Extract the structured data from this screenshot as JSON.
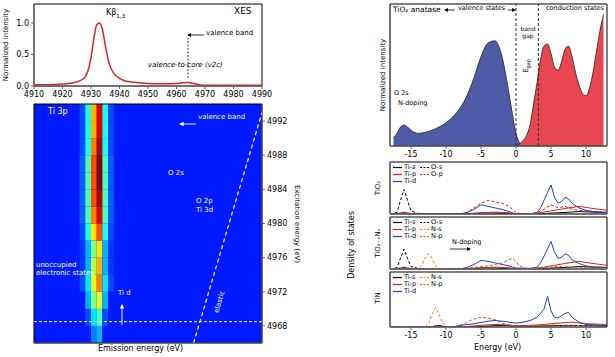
{
  "chart_data": [
    {
      "type": "line",
      "title": "XES",
      "ylabel": "Normalized intensity",
      "color": "#d62728",
      "xlim": [
        4910,
        4990
      ],
      "xticks": [
        4910,
        4920,
        4930,
        4940,
        4950,
        4960,
        4970,
        4980,
        4990
      ],
      "ylim": [
        0,
        1.3
      ],
      "yticks": [
        {
          "value": 0,
          "label": "0.0"
        },
        0.5,
        {
          "value": 1,
          "label": "1.0"
        }
      ],
      "x": [
        4910,
        4915,
        4920,
        4924,
        4926,
        4928,
        4929,
        4930,
        4931,
        4932,
        4933,
        4934,
        4935,
        4936,
        4937,
        4938,
        4940,
        4942,
        4945,
        4950,
        4955,
        4960,
        4962,
        4964,
        4966,
        4968,
        4970,
        4975,
        4980,
        4990
      ],
      "values": [
        0.02,
        0.02,
        0.03,
        0.05,
        0.08,
        0.15,
        0.25,
        0.45,
        0.75,
        0.97,
        1.0,
        0.9,
        0.65,
        0.42,
        0.28,
        0.2,
        0.12,
        0.08,
        0.06,
        0.04,
        0.035,
        0.04,
        0.05,
        0.055,
        0.04,
        0.02,
        0.01,
        0.01,
        0.01,
        0.01
      ],
      "annotations": [
        "Kβ1,3",
        "valence band",
        "valence-to-core (v2c)"
      ]
    },
    {
      "type": "heatmap",
      "xlabel": "Emission energy (eV)",
      "ylabel": "Excitation energy (eV)",
      "xlim": [
        4910,
        4990
      ],
      "ylim": [
        4966,
        4994
      ],
      "yticks": [
        4968,
        4972,
        4976,
        4980,
        4984,
        4988,
        4992
      ],
      "tick_labels": "y",
      "zlim": [
        0,
        1
      ],
      "background": 0.15,
      "cell_size": [
        2,
        2
      ],
      "cells": {
        "x": [
          4926,
          4928,
          4930,
          4932,
          4934,
          4936
        ],
        "y": [
          4966,
          4968,
          4970,
          4972,
          4974,
          4976,
          4978,
          4980,
          4982,
          4984,
          4986,
          4988,
          4990,
          4992
        ],
        "z": [
          [
            0.15,
            0.15,
            0.15,
            0.2,
            0.18,
            0.18,
            0.2,
            0.22,
            0.22,
            0.22,
            0.22,
            0.2,
            0.2,
            0.2
          ],
          [
            0.15,
            0.2,
            0.3,
            0.35,
            0.3,
            0.3,
            0.4,
            0.45,
            0.45,
            0.45,
            0.45,
            0.4,
            0.4,
            0.4
          ],
          [
            0.25,
            0.35,
            0.5,
            0.6,
            0.55,
            0.5,
            0.65,
            0.75,
            0.8,
            0.8,
            0.8,
            0.75,
            0.7,
            0.7
          ],
          [
            0.3,
            0.45,
            0.6,
            0.75,
            0.7,
            0.65,
            0.8,
            0.9,
            0.95,
            1.0,
            1.0,
            0.95,
            0.9,
            0.9
          ],
          [
            0.15,
            0.2,
            0.3,
            0.35,
            0.3,
            0.3,
            0.4,
            0.45,
            0.45,
            0.45,
            0.45,
            0.4,
            0.4,
            0.4
          ],
          [
            0.15,
            0.15,
            0.15,
            0.2,
            0.18,
            0.18,
            0.2,
            0.22,
            0.22,
            0.22,
            0.22,
            0.2,
            0.2,
            0.2
          ]
        ]
      },
      "elastic": [
        [
          4966,
          4966
        ],
        [
          4990,
          4993
        ]
      ],
      "threshold": 4968.5,
      "annotations": [
        "Ti 3p",
        "valence band",
        "O 2s",
        "O 2p",
        "Ti 3d",
        "unoccupied electronic states",
        "Ti d",
        "elastic"
      ]
    },
    {
      "type": "area",
      "title": "TiO₂ anatase",
      "ylabel": "Normalized intensity",
      "xlim": [
        -18,
        13
      ],
      "xticks": [
        -15,
        -10,
        -5,
        0,
        5,
        10
      ],
      "ylim": [
        0,
        1.35
      ],
      "tick_labels": "x",
      "x": [
        -17.5,
        -17,
        -16.5,
        -16,
        -15.5,
        -15,
        -14.5,
        -14,
        -13,
        -12,
        -11,
        -10,
        -9,
        -8,
        -7,
        -6,
        -5,
        -4,
        -3,
        -2,
        -1,
        -0.5,
        0,
        0.5,
        1,
        1.5,
        2,
        2.5,
        3,
        3.5,
        4,
        4.5,
        5,
        5.5,
        6,
        6.5,
        7,
        7.5,
        8,
        8.5,
        9,
        9.5,
        10,
        10.5,
        11,
        11.5,
        12,
        12.5
      ],
      "series": [
        {
          "name": "valence states",
          "color": "#4e5ca8",
          "values": [
            0.08,
            0.12,
            0.18,
            0.2,
            0.18,
            0.15,
            0.13,
            0.12,
            0.13,
            0.15,
            0.18,
            0.22,
            0.28,
            0.36,
            0.48,
            0.65,
            0.85,
            0.98,
            1.0,
            0.85,
            0.5,
            0.3,
            0.12,
            0.03,
            0,
            null,
            null,
            null,
            null,
            null,
            null,
            null,
            null,
            null,
            null,
            null,
            null,
            null,
            null,
            null,
            null,
            null,
            null,
            null,
            null,
            null,
            null,
            null
          ]
        },
        {
          "name": "conduction states",
          "color": "#e8464f",
          "values": [
            null,
            null,
            null,
            null,
            null,
            null,
            null,
            null,
            null,
            null,
            null,
            null,
            null,
            null,
            null,
            null,
            null,
            null,
            null,
            null,
            null,
            null,
            0,
            0.02,
            0.05,
            0.1,
            0.2,
            0.4,
            0.6,
            0.82,
            0.95,
            0.97,
            0.88,
            0.75,
            0.72,
            0.8,
            0.92,
            0.95,
            0.85,
            0.7,
            0.58,
            0.5,
            0.48,
            0.55,
            0.7,
            0.9,
            1.1,
            1.25
          ]
        }
      ],
      "band_edges": [
        0,
        3.2
      ],
      "annotations": [
        "band gap",
        "Egap",
        "O 2s",
        "N-doping"
      ]
    },
    {
      "type": "line",
      "title": "TiO₂",
      "xlim": [
        -18,
        13
      ],
      "ylim": [
        0,
        1.7
      ],
      "tick_labels": false,
      "legend": "upper left",
      "series": [
        {
          "name": "Ti-s",
          "color": "#000000",
          "line_style": "solid",
          "x": [
            -18,
            -16.5,
            -16,
            -15.5,
            -14,
            -6,
            -4,
            -2,
            0,
            3,
            5,
            7,
            9,
            11,
            13
          ],
          "values": [
            0,
            0.02,
            0.06,
            0.02,
            0,
            0.02,
            0.04,
            0.02,
            0,
            0,
            0.03,
            0.05,
            0.08,
            0.06,
            0.05
          ]
        },
        {
          "name": "O-s",
          "color": "#000000",
          "line_style": "dashed",
          "x": [
            -18,
            -17,
            -16.5,
            -16,
            -15.5,
            -15,
            -14,
            -13
          ],
          "values": [
            0,
            0.05,
            0.45,
            0.8,
            0.45,
            0.1,
            0.02,
            0
          ]
        },
        {
          "name": "Ti-p",
          "color": "#e0201b",
          "line_style": "solid",
          "x": [
            -18,
            -16,
            -14,
            -7,
            -5,
            -3,
            -1,
            0,
            2,
            3,
            5,
            7,
            9,
            11,
            13
          ],
          "values": [
            0,
            0.04,
            0,
            0,
            0.04,
            0.06,
            0.04,
            0,
            0,
            0.03,
            0.1,
            0.18,
            0.25,
            0.18,
            0.12
          ]
        },
        {
          "name": "O-p",
          "color": "#e0201b",
          "line_style": "dashed",
          "x": [
            -18,
            -8,
            -7,
            -6,
            -5,
            -4,
            -3,
            -2,
            -1,
            0,
            1,
            2,
            3,
            4,
            5,
            6,
            7,
            8,
            10,
            13
          ],
          "values": [
            0,
            0,
            0.05,
            0.2,
            0.35,
            0.45,
            0.4,
            0.35,
            0.25,
            0.05,
            0,
            0,
            0.05,
            0.15,
            0.3,
            0.2,
            0.25,
            0.15,
            0.1,
            0.05
          ]
        },
        {
          "name": "Ti-d",
          "color": "#1f3fbf",
          "line_style": "solid",
          "x": [
            -18,
            -8,
            -7,
            -6,
            -5,
            -4,
            -3,
            -2,
            -1,
            0,
            2,
            3,
            3.5,
            4,
            4.5,
            5,
            5.5,
            6,
            6.5,
            7,
            7.5,
            8,
            9,
            10,
            11,
            13
          ],
          "values": [
            0,
            0,
            0.05,
            0.15,
            0.3,
            0.25,
            0.2,
            0.15,
            0.08,
            0,
            0,
            0.05,
            0.2,
            0.45,
            0.7,
            0.95,
            0.55,
            0.35,
            0.4,
            0.55,
            0.5,
            0.35,
            0.2,
            0.12,
            0.08,
            0.05
          ]
        }
      ]
    },
    {
      "type": "line",
      "title": "TiO₂₋ₓNₓ",
      "ylabel": "Density of states",
      "xlim": [
        -18,
        13
      ],
      "ylim": [
        0,
        1.7
      ],
      "tick_labels": false,
      "legend": "upper left",
      "annotations": [
        "N-doping"
      ],
      "series": [
        {
          "name": "Ti-s",
          "color": "#000000",
          "line_style": "solid",
          "x": [
            -18,
            -16.5,
            -16,
            -15.5,
            -14,
            -6,
            -4,
            -2,
            0,
            3,
            5,
            7,
            9,
            11,
            13
          ],
          "values": [
            0,
            0.02,
            0.06,
            0.02,
            0,
            0.02,
            0.04,
            0.02,
            0,
            0,
            0.03,
            0.05,
            0.08,
            0.06,
            0.05
          ]
        },
        {
          "name": "O-s",
          "color": "#000000",
          "line_style": "dashed",
          "x": [
            -18,
            -17,
            -16.5,
            -16,
            -15.5,
            -15,
            -14,
            -13
          ],
          "values": [
            0,
            0.04,
            0.35,
            0.65,
            0.35,
            0.08,
            0.02,
            0
          ]
        },
        {
          "name": "Ti-p",
          "color": "#e0201b",
          "line_style": "solid",
          "x": [
            -18,
            -16,
            -14,
            -7,
            -5,
            -3,
            -1,
            0,
            2,
            3,
            5,
            7,
            9,
            11,
            13
          ],
          "values": [
            0,
            0.04,
            0,
            0,
            0.04,
            0.06,
            0.04,
            0,
            0,
            0.03,
            0.1,
            0.18,
            0.25,
            0.18,
            0.12
          ]
        },
        {
          "name": "N-s",
          "color": "#e8871e",
          "line_style": "dashed",
          "x": [
            -18,
            -14,
            -13.5,
            -13,
            -12.5,
            -12,
            -11.5,
            -11,
            -10
          ],
          "values": [
            0,
            0,
            0.1,
            0.35,
            0.5,
            0.35,
            0.1,
            0.02,
            0
          ]
        },
        {
          "name": "Ti-d",
          "color": "#1f3fbf",
          "line_style": "solid",
          "x": [
            -18,
            -8,
            -7,
            -6,
            -5,
            -4,
            -3,
            -2,
            -1,
            0,
            2,
            3,
            3.5,
            4,
            4.5,
            5,
            5.5,
            6,
            6.5,
            7,
            7.5,
            8,
            9,
            10,
            11,
            13
          ],
          "values": [
            0,
            0,
            0.05,
            0.15,
            0.28,
            0.25,
            0.2,
            0.15,
            0.1,
            0.03,
            0.02,
            0.06,
            0.2,
            0.42,
            0.65,
            0.9,
            0.55,
            0.35,
            0.38,
            0.5,
            0.45,
            0.3,
            0.18,
            0.1,
            0.07,
            0.05
          ]
        },
        {
          "name": "N-p",
          "color": "#b8641a",
          "line_style": "dashed",
          "x": [
            -18,
            -8,
            -6,
            -4,
            -3,
            -2,
            -1,
            -0.5,
            0,
            0.5,
            1,
            2,
            4,
            6,
            8,
            13
          ],
          "values": [
            0,
            0,
            0.05,
            0.1,
            0.15,
            0.2,
            0.3,
            0.35,
            0.25,
            0.1,
            0.05,
            0,
            0.05,
            0.08,
            0.06,
            0.03
          ]
        }
      ]
    },
    {
      "type": "line",
      "title": "TiN",
      "xlabel": "Energy (eV)",
      "xlim": [
        -18,
        13
      ],
      "xticks": [
        -15,
        -10,
        -5,
        0,
        5,
        10
      ],
      "ylim": [
        0,
        1.7
      ],
      "tick_labels": "x",
      "legend": "upper left",
      "series": [
        {
          "name": "Ti-s",
          "color": "#000000",
          "line_style": "solid",
          "x": [
            -18,
            -12,
            -11,
            -10,
            -6,
            -4,
            -2,
            0,
            2,
            5,
            8,
            13
          ],
          "values": [
            0,
            0,
            0.05,
            0,
            0,
            0.03,
            0.05,
            0.03,
            0.02,
            0.04,
            0.05,
            0.03
          ]
        },
        {
          "name": "N-s",
          "color": "#e8871e",
          "line_style": "dashed",
          "x": [
            -18,
            -13,
            -12.5,
            -12,
            -11.5,
            -11,
            -10.5,
            -10,
            -9
          ],
          "values": [
            0,
            0,
            0.1,
            0.4,
            0.6,
            0.4,
            0.12,
            0.02,
            0
          ]
        },
        {
          "name": "Ti-p",
          "color": "#e0201b",
          "line_style": "solid",
          "x": [
            -18,
            -12,
            -11.5,
            -11,
            -8,
            -5,
            -3,
            -1,
            0,
            2,
            4,
            6,
            8,
            10,
            13
          ],
          "values": [
            0,
            0,
            0.05,
            0,
            0,
            0.05,
            0.08,
            0.06,
            0.04,
            0.05,
            0.08,
            0.12,
            0.15,
            0.1,
            0.08
          ]
        },
        {
          "name": "N-p",
          "color": "#b8641a",
          "line_style": "dashed",
          "x": [
            -18,
            -9,
            -8,
            -7,
            -6,
            -5,
            -4,
            -3,
            -2,
            -1,
            0,
            1,
            3,
            5,
            8,
            13
          ],
          "values": [
            0,
            0,
            0.05,
            0.15,
            0.25,
            0.3,
            0.28,
            0.22,
            0.12,
            0.06,
            0.04,
            0.03,
            0.04,
            0.06,
            0.05,
            0.03
          ]
        },
        {
          "name": "Ti-d",
          "color": "#1f3fbf",
          "line_style": "solid",
          "x": [
            -18,
            -9,
            -8,
            -6,
            -4,
            -3,
            -2,
            -1,
            0,
            1,
            2,
            3,
            4,
            4.5,
            5,
            5.5,
            6,
            6.5,
            7,
            7.5,
            8,
            9,
            10,
            13
          ],
          "values": [
            0,
            0,
            0.05,
            0.1,
            0.18,
            0.2,
            0.18,
            0.15,
            0.12,
            0.15,
            0.2,
            0.3,
            0.55,
            0.95,
            0.5,
            0.3,
            0.28,
            0.35,
            0.42,
            0.45,
            0.3,
            0.15,
            0.08,
            0.04
          ]
        }
      ]
    }
  ]
}
